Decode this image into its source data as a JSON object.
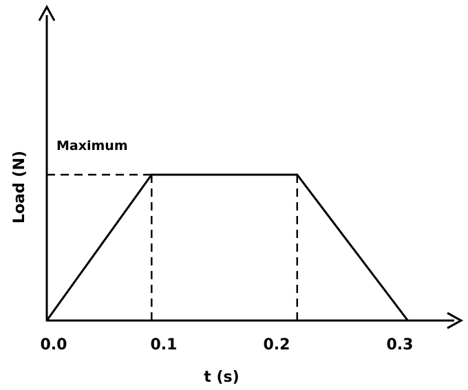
{
  "chart_data": {
    "type": "line",
    "xlabel": "t (s)",
    "ylabel": "Load (N)",
    "x_ticks": [
      "0.0",
      "0.1",
      "0.2",
      "0.3"
    ],
    "x": [
      0.0,
      0.09,
      0.215,
      0.31
    ],
    "y_relative": [
      0,
      1,
      1,
      0
    ],
    "annotations": [
      {
        "text": "Maximum",
        "refers_to": "max_load"
      }
    ],
    "grid": false,
    "legend": "none",
    "line_color": "#000000"
  }
}
